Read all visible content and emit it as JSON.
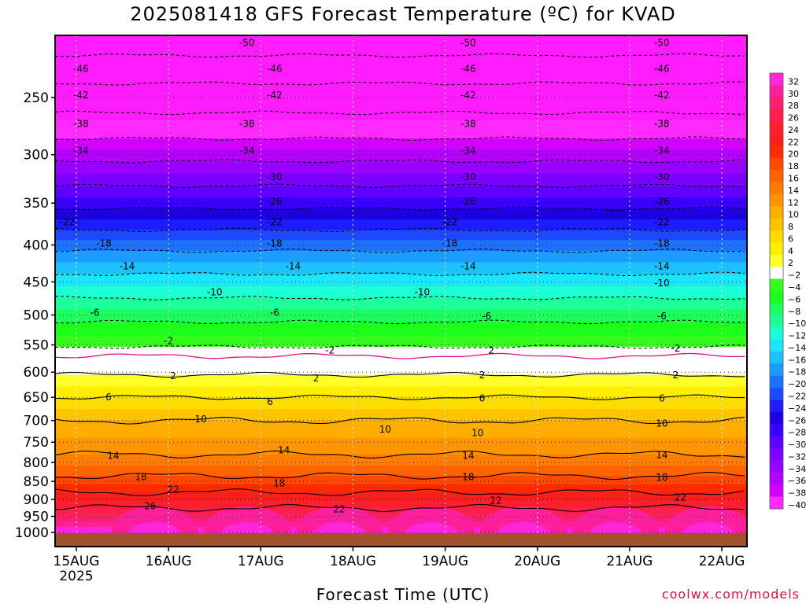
{
  "chart_data": {
    "type": "heatmap",
    "title": "2025081418 GFS Forecast Temperature (ºC) for KVAD",
    "xlabel": "Forecast Time (UTC)",
    "ylabel": "",
    "x_ticks": [
      "15AUG",
      "16AUG",
      "17AUG",
      "18AUG",
      "19AUG",
      "20AUG",
      "21AUG",
      "22AUG"
    ],
    "x_tick_sublabel": "2025",
    "y_ticks": [
      250,
      300,
      350,
      400,
      450,
      500,
      550,
      600,
      650,
      700,
      750,
      800,
      850,
      900,
      950,
      1000
    ],
    "y_scale": "log-pressure",
    "ylim_hpa": [
      200,
      1025
    ],
    "colorbar": {
      "labels": [
        32,
        30,
        28,
        26,
        24,
        22,
        20,
        18,
        16,
        14,
        12,
        10,
        8,
        6,
        4,
        2,
        -2,
        -4,
        -6,
        -8,
        -10,
        -12,
        -14,
        -16,
        -18,
        -20,
        -22,
        -24,
        -26,
        -28,
        -30,
        -32,
        -34,
        -36,
        -38,
        -40
      ],
      "colors": [
        "#ff26dc",
        "#ff1f9c",
        "#ff1f6e",
        "#ff1f4a",
        "#ff1f2e",
        "#f81f1f",
        "#ff2a00",
        "#ff4a00",
        "#ff6400",
        "#ff7d00",
        "#ff9600",
        "#ffae00",
        "#ffc400",
        "#ffdc00",
        "#ffee00",
        "#ffff2a",
        "#ffffff",
        "#34ff1c",
        "#1cff1c",
        "#1cff5e",
        "#1cff9a",
        "#1cffd6",
        "#1ce6ff",
        "#1cc2ff",
        "#1c9cff",
        "#1c72ff",
        "#1c48ff",
        "#1c1cff",
        "#1c00e0",
        "#3a00ff",
        "#6000ff",
        "#7c00ff",
        "#9800ff",
        "#b400ff",
        "#d200ff",
        "#ff2aff"
      ]
    },
    "isotherms_dashed": [
      -50,
      -46,
      -42,
      -38,
      -34,
      -30,
      -26,
      -22,
      -18,
      -14,
      -10,
      -6,
      -2
    ],
    "isotherms_solid": [
      2,
      6,
      10,
      14,
      18,
      22,
      26
    ],
    "freezing_line": 0,
    "contour_labels": [
      {
        "value": "-50",
        "x_day": 1.85,
        "p": 210
      },
      {
        "value": "-50",
        "x_day": 4.25,
        "p": 210
      },
      {
        "value": "-50",
        "x_day": 6.35,
        "p": 210
      },
      {
        "value": "-46",
        "x_day": 0.05,
        "p": 228
      },
      {
        "value": "-46",
        "x_day": 2.15,
        "p": 228
      },
      {
        "value": "-46",
        "x_day": 4.25,
        "p": 228
      },
      {
        "value": "-46",
        "x_day": 6.35,
        "p": 228
      },
      {
        "value": "-42",
        "x_day": 0.05,
        "p": 248
      },
      {
        "value": "-42",
        "x_day": 2.15,
        "p": 248
      },
      {
        "value": "-42",
        "x_day": 4.25,
        "p": 248
      },
      {
        "value": "-42",
        "x_day": 6.35,
        "p": 248
      },
      {
        "value": "-38",
        "x_day": 0.05,
        "p": 272
      },
      {
        "value": "-38",
        "x_day": 1.85,
        "p": 272
      },
      {
        "value": "-38",
        "x_day": 4.25,
        "p": 272
      },
      {
        "value": "-38",
        "x_day": 6.35,
        "p": 272
      },
      {
        "value": "-34",
        "x_day": 0.05,
        "p": 296
      },
      {
        "value": "-34",
        "x_day": 1.85,
        "p": 296
      },
      {
        "value": "-34",
        "x_day": 4.25,
        "p": 296
      },
      {
        "value": "-34",
        "x_day": 6.35,
        "p": 296
      },
      {
        "value": "-30",
        "x_day": 2.15,
        "p": 322
      },
      {
        "value": "-30",
        "x_day": 4.25,
        "p": 322
      },
      {
        "value": "-30",
        "x_day": 6.35,
        "p": 322
      },
      {
        "value": "-26",
        "x_day": 2.15,
        "p": 348
      },
      {
        "value": "-26",
        "x_day": 4.25,
        "p": 348
      },
      {
        "value": "-26",
        "x_day": 6.35,
        "p": 348
      },
      {
        "value": "-22",
        "x_day": -0.1,
        "p": 372
      },
      {
        "value": "-22",
        "x_day": 2.15,
        "p": 372
      },
      {
        "value": "-22",
        "x_day": 4.05,
        "p": 372
      },
      {
        "value": "-22",
        "x_day": 6.35,
        "p": 372
      },
      {
        "value": "-18",
        "x_day": 0.3,
        "p": 398
      },
      {
        "value": "-18",
        "x_day": 2.15,
        "p": 398
      },
      {
        "value": "-18",
        "x_day": 4.05,
        "p": 398
      },
      {
        "value": "-18",
        "x_day": 6.35,
        "p": 398
      },
      {
        "value": "-14",
        "x_day": 0.55,
        "p": 428
      },
      {
        "value": "-14",
        "x_day": 2.35,
        "p": 428
      },
      {
        "value": "-14",
        "x_day": 4.25,
        "p": 428
      },
      {
        "value": "-14",
        "x_day": 6.35,
        "p": 428
      },
      {
        "value": "-10",
        "x_day": 1.5,
        "p": 465
      },
      {
        "value": "-10",
        "x_day": 3.75,
        "p": 465
      },
      {
        "value": "-10",
        "x_day": 6.35,
        "p": 452
      },
      {
        "value": "-6",
        "x_day": 0.2,
        "p": 496
      },
      {
        "value": "-6",
        "x_day": 2.15,
        "p": 496
      },
      {
        "value": "-6",
        "x_day": 4.45,
        "p": 502
      },
      {
        "value": "-6",
        "x_day": 6.35,
        "p": 502
      },
      {
        "value": "-2",
        "x_day": 1.0,
        "p": 543
      },
      {
        "value": "-2",
        "x_day": 2.75,
        "p": 560
      },
      {
        "value": "2",
        "x_day": 4.5,
        "p": 560
      },
      {
        "value": "-2",
        "x_day": 6.5,
        "p": 556
      },
      {
        "value": "2",
        "x_day": 1.05,
        "p": 607
      },
      {
        "value": "2",
        "x_day": 2.6,
        "p": 612
      },
      {
        "value": "2",
        "x_day": 4.4,
        "p": 606
      },
      {
        "value": "2",
        "x_day": 6.5,
        "p": 606
      },
      {
        "value": "6",
        "x_day": 0.35,
        "p": 650
      },
      {
        "value": "6",
        "x_day": 2.1,
        "p": 660
      },
      {
        "value": "6",
        "x_day": 4.4,
        "p": 652
      },
      {
        "value": "6",
        "x_day": 6.35,
        "p": 652
      },
      {
        "value": "10",
        "x_day": 1.35,
        "p": 697
      },
      {
        "value": "10",
        "x_day": 3.35,
        "p": 720
      },
      {
        "value": "10",
        "x_day": 4.35,
        "p": 728
      },
      {
        "value": "10",
        "x_day": 6.35,
        "p": 707
      },
      {
        "value": "14",
        "x_day": 0.4,
        "p": 783
      },
      {
        "value": "14",
        "x_day": 2.25,
        "p": 770
      },
      {
        "value": "14",
        "x_day": 4.25,
        "p": 783
      },
      {
        "value": "14",
        "x_day": 6.35,
        "p": 781
      },
      {
        "value": "18",
        "x_day": 0.7,
        "p": 838
      },
      {
        "value": "18",
        "x_day": 2.2,
        "p": 855
      },
      {
        "value": "18",
        "x_day": 4.25,
        "p": 838
      },
      {
        "value": "18",
        "x_day": 6.35,
        "p": 839
      },
      {
        "value": "22",
        "x_day": 1.05,
        "p": 872
      },
      {
        "value": "22",
        "x_day": 2.85,
        "p": 929
      },
      {
        "value": "22",
        "x_day": 4.55,
        "p": 904
      },
      {
        "value": "22",
        "x_day": 6.55,
        "p": 894
      },
      {
        "value": "26",
        "x_day": 0.8,
        "p": 919
      }
    ]
  },
  "credit": "coolwx.com/models"
}
